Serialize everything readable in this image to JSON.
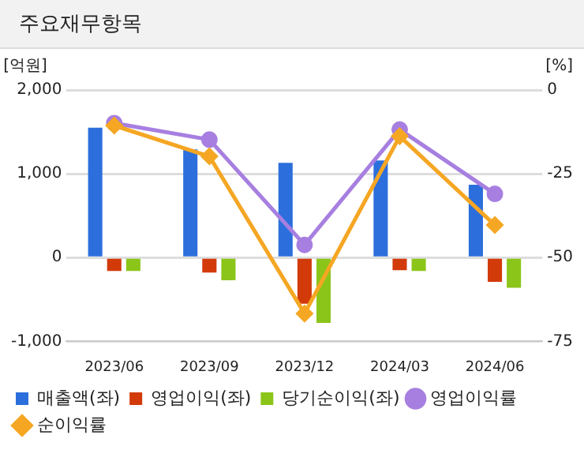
{
  "chart_data": {
    "type": "bar",
    "title": "주요재무항목",
    "ylabel": "[억원]",
    "y2label": "[%]",
    "categories": [
      "2023/06",
      "2023/09",
      "2023/12",
      "2024/03",
      "2024/06"
    ],
    "series": [
      {
        "name": "매출액(좌)",
        "color": "#2c6fdc",
        "values": [
          1550,
          1290,
          1130,
          1160,
          870
        ]
      },
      {
        "name": "영업이익(좌)",
        "color": "#d23a0a",
        "values": [
          -160,
          -180,
          -550,
          -150,
          -290
        ]
      },
      {
        "name": "당기순이익(좌)",
        "color": "#8cc51a",
        "values": [
          -160,
          -270,
          -780,
          -160,
          -360
        ]
      },
      {
        "name": "영업이익률",
        "type": "line",
        "axis": "y2",
        "marker": "circle",
        "color": "#a77fe0",
        "values": [
          -9.9,
          -14.8,
          -46.2,
          -11.8,
          -31.0
        ]
      },
      {
        "name": "순이익률",
        "type": "line",
        "axis": "y2",
        "marker": "diamond",
        "color": "#f5a623",
        "values": [
          -10.6,
          -19.8,
          -66.7,
          -13.8,
          -40.3
        ]
      }
    ],
    "ylim": [
      -1000,
      2000
    ],
    "yticks": [
      {
        "value": -1000,
        "label": "-1,000"
      },
      0,
      {
        "value": 1000,
        "label": "1,000"
      },
      {
        "value": 2000,
        "label": "2,000"
      }
    ],
    "y2lim": [
      -75,
      0
    ],
    "y2ticks": [
      -75,
      -50,
      -25,
      0
    ],
    "grid": "y",
    "legend": "bottom"
  }
}
